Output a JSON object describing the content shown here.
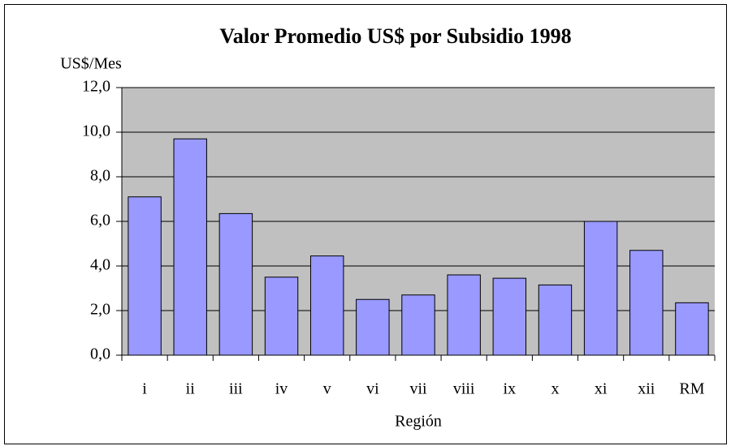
{
  "chart_data": {
    "type": "bar",
    "title": "Valor Promedio US$ por Subsidio 1998",
    "y_label": "US$/Mes",
    "x_label": "Región",
    "categories": [
      "i",
      "ii",
      "iii",
      "iv",
      "v",
      "vi",
      "vii",
      "viii",
      "ix",
      "x",
      "xi",
      "xii",
      "RM"
    ],
    "values": [
      7.1,
      9.7,
      6.35,
      3.5,
      4.45,
      2.5,
      2.7,
      3.6,
      3.45,
      3.15,
      6.0,
      4.7,
      2.35
    ],
    "color": "#9999ff",
    "ylim": [
      0,
      12
    ],
    "yticks": [
      {
        "value": 0,
        "label": "0,0"
      },
      {
        "value": 2,
        "label": "2,0"
      },
      {
        "value": 4,
        "label": "4,0"
      },
      {
        "value": 6,
        "label": "6,0"
      },
      {
        "value": 8,
        "label": "8,0"
      },
      {
        "value": 10,
        "label": "10,0"
      },
      {
        "value": 12,
        "label": "12,0"
      }
    ],
    "grid": true
  }
}
